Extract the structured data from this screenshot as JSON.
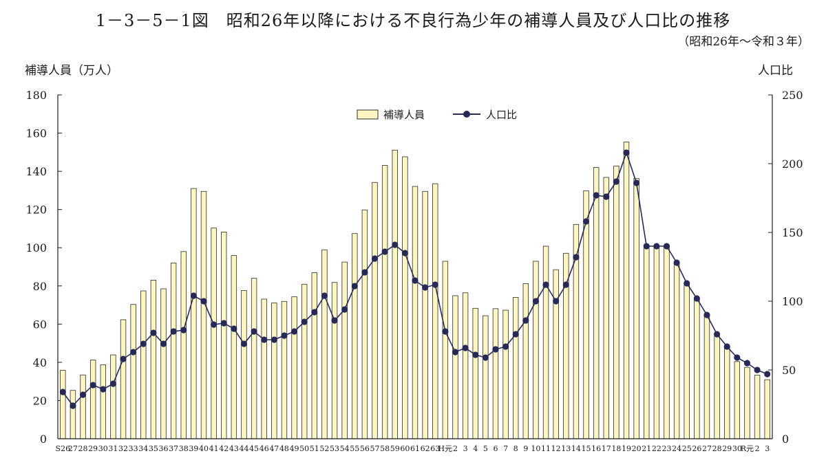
{
  "title": "1－3－5－1図　昭和26年以降における不良行為少年の補導人員及び人口比の推移",
  "subtitle": "（昭和26年～令和３年）",
  "colors": {
    "bar_fill": "#fdf6c3",
    "bar_stroke": "#2a2a2a",
    "line": "#262855",
    "marker": "#262855"
  },
  "chart_data": {
    "type": "bar+line",
    "ylabel_left": "補導人員（万人）",
    "ylabel_right": "人口比",
    "ylim_left": [
      0,
      180
    ],
    "yticks_left": [
      0,
      20,
      40,
      60,
      80,
      100,
      120,
      140,
      160,
      180
    ],
    "ylim_right": [
      0,
      250
    ],
    "yticks_right": [
      0,
      50,
      100,
      150,
      200,
      250
    ],
    "grid": false,
    "legend_position": "top-center",
    "legend": [
      {
        "label": "補導人員",
        "kind": "bar"
      },
      {
        "label": "人口比",
        "kind": "line-marker"
      }
    ],
    "categories": [
      "S26",
      "27",
      "28",
      "29",
      "30",
      "31",
      "32",
      "33",
      "34",
      "35",
      "36",
      "37",
      "38",
      "39",
      "40",
      "41",
      "42",
      "43",
      "44",
      "45",
      "46",
      "47",
      "48",
      "49",
      "50",
      "51",
      "52",
      "53",
      "54",
      "55",
      "56",
      "57",
      "58",
      "59",
      "60",
      "61",
      "62",
      "63",
      "H元",
      "2",
      "3",
      "4",
      "5",
      "6",
      "7",
      "8",
      "9",
      "10",
      "11",
      "12",
      "13",
      "14",
      "15",
      "16",
      "17",
      "18",
      "19",
      "20",
      "21",
      "22",
      "23",
      "24",
      "25",
      "26",
      "27",
      "28",
      "29",
      "30",
      "R元",
      "2",
      "3"
    ],
    "series": [
      {
        "name": "補導人員",
        "axis": "left",
        "values": [
          35.8,
          25.3,
          33.4,
          41.2,
          38.7,
          43.9,
          62.3,
          70.3,
          77.4,
          83.0,
          78.5,
          92.0,
          98.0,
          131.0,
          129.5,
          110.3,
          108.2,
          95.9,
          77.6,
          84.0,
          73.1,
          71.1,
          71.9,
          74.3,
          80.9,
          86.9,
          98.9,
          81.8,
          92.5,
          107.4,
          119.8,
          134.2,
          143.1,
          151.1,
          147.6,
          132.1,
          129.5,
          133.5,
          92.9,
          74.9,
          76.4,
          68.3,
          64.4,
          68.1,
          67.3,
          74.0,
          81.2,
          92.9,
          100.8,
          88.5,
          97.1,
          112.2,
          129.8,
          142.0,
          136.8,
          142.8,
          155.3,
          136.2,
          101.5,
          101.3,
          101.0,
          91.7,
          80.9,
          73.2,
          64.1,
          53.6,
          47.7,
          40.4,
          37.4,
          33.3,
          30.9
        ]
      },
      {
        "name": "人口比",
        "axis": "right",
        "values": [
          34,
          24,
          32,
          39,
          36,
          40,
          58,
          63,
          69,
          77,
          69,
          78,
          79,
          104,
          100,
          83,
          84,
          80,
          69,
          78,
          72,
          72,
          75,
          78,
          85,
          92,
          104,
          86,
          94,
          111,
          121,
          131,
          136,
          141,
          135,
          115,
          110,
          112,
          78,
          63,
          66,
          61,
          59,
          65,
          67,
          76,
          86,
          100,
          112,
          100,
          112,
          132,
          158,
          177,
          176,
          187,
          208,
          186,
          140,
          140,
          140,
          128,
          113,
          102,
          90,
          76,
          67,
          59,
          55,
          50,
          47
        ]
      }
    ]
  }
}
